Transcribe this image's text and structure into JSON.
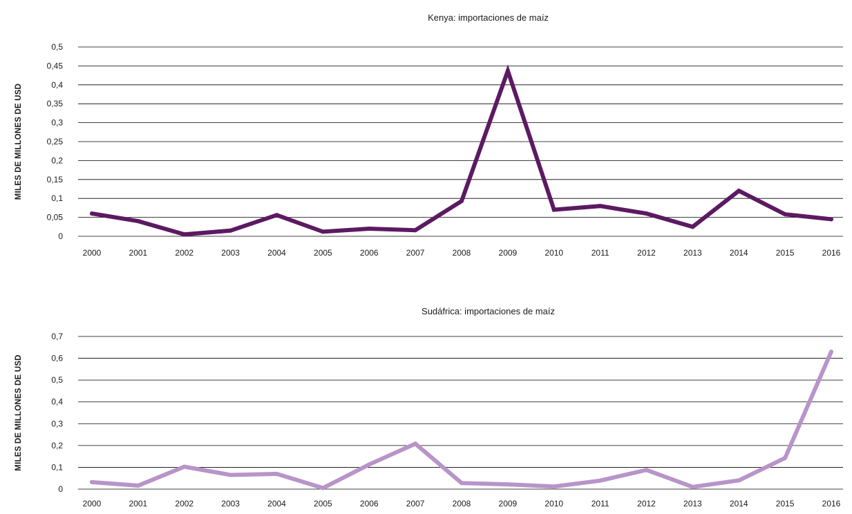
{
  "chart_data": [
    {
      "type": "line",
      "title": "Kenya: importaciones de maíz",
      "ylabel": "MILES DE MILLONES DE USD",
      "xlabel": "",
      "categories": [
        "2000",
        "2001",
        "2002",
        "2003",
        "2004",
        "2005",
        "2006",
        "2007",
        "2008",
        "2009",
        "2010",
        "2011",
        "2012",
        "2013",
        "2014",
        "2015",
        "2016"
      ],
      "series": [
        {
          "values": [
            0.06,
            0.04,
            0.005,
            0.015,
            0.056,
            0.012,
            0.02,
            0.016,
            0.093,
            0.437,
            0.07,
            0.08,
            0.06,
            0.025,
            0.12,
            0.058,
            0.045
          ],
          "color": "#5c1a62"
        }
      ],
      "ylim": [
        0,
        0.5
      ],
      "yticks": [
        0,
        0.05,
        0.1,
        0.15,
        0.2,
        0.25,
        0.3,
        0.35,
        0.4,
        0.45,
        0.5
      ],
      "ytick_labels": [
        "0",
        "0,05",
        "0,1",
        "0,15",
        "0,2",
        "0,25",
        "0,3",
        "0,35",
        "0,4",
        "0,45",
        "0,5"
      ],
      "grid": true,
      "legend": "none"
    },
    {
      "type": "line",
      "title": "Sudáfrica: importaciones de maíz",
      "ylabel": "MILES DE MILLONES DE USD",
      "xlabel": "",
      "categories": [
        "2000",
        "2001",
        "2002",
        "2003",
        "2004",
        "2005",
        "2006",
        "2007",
        "2008",
        "2009",
        "2010",
        "2011",
        "2012",
        "2013",
        "2014",
        "2015",
        "2016"
      ],
      "series": [
        {
          "values": [
            0.032,
            0.016,
            0.103,
            0.065,
            0.07,
            0.005,
            0.113,
            0.208,
            0.028,
            0.022,
            0.012,
            0.039,
            0.088,
            0.01,
            0.04,
            0.143,
            0.63
          ],
          "color": "#b894c9"
        }
      ],
      "ylim": [
        0,
        0.7
      ],
      "yticks": [
        0,
        0.1,
        0.2,
        0.3,
        0.4,
        0.5,
        0.6,
        0.7
      ],
      "ytick_labels": [
        "0",
        "0,1",
        "0,2",
        "0,3",
        "0,4",
        "0,5",
        "0,6",
        "0,7"
      ],
      "grid": true,
      "legend": "none"
    }
  ]
}
